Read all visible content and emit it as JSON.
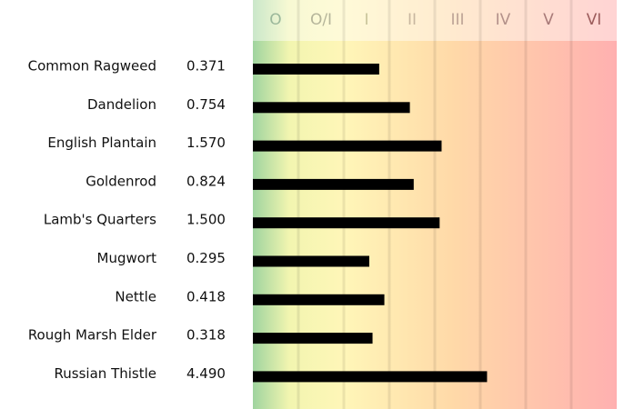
{
  "chart_data": {
    "type": "bar",
    "orientation": "horizontal",
    "classes": [
      "O",
      "O/I",
      "I",
      "II",
      "III",
      "IV",
      "V",
      "VI"
    ],
    "class_colors": [
      "#9bb89b",
      "#b5b59a",
      "#c9c49a",
      "#c8b7a0",
      "#bda396",
      "#b3918a",
      "#a87a78",
      "#9c5c5c"
    ],
    "categories": [
      "Common Ragweed",
      "Dandelion",
      "English Plantain",
      "Goldenrod",
      "Lamb's Quarters",
      "Mugwort",
      "Nettle",
      "Rough Marsh Elder",
      "Russian Thistle"
    ],
    "values": [
      0.371,
      0.754,
      1.57,
      0.824,
      1.5,
      0.295,
      0.418,
      0.318,
      4.49
    ],
    "value_labels": [
      "0.371",
      "0.754",
      "1.570",
      "0.824",
      "1.500",
      "0.295",
      "0.418",
      "0.318",
      "4.490"
    ],
    "color": "#000000",
    "log_scale": true,
    "xlim": [
      0.02,
      90
    ]
  }
}
